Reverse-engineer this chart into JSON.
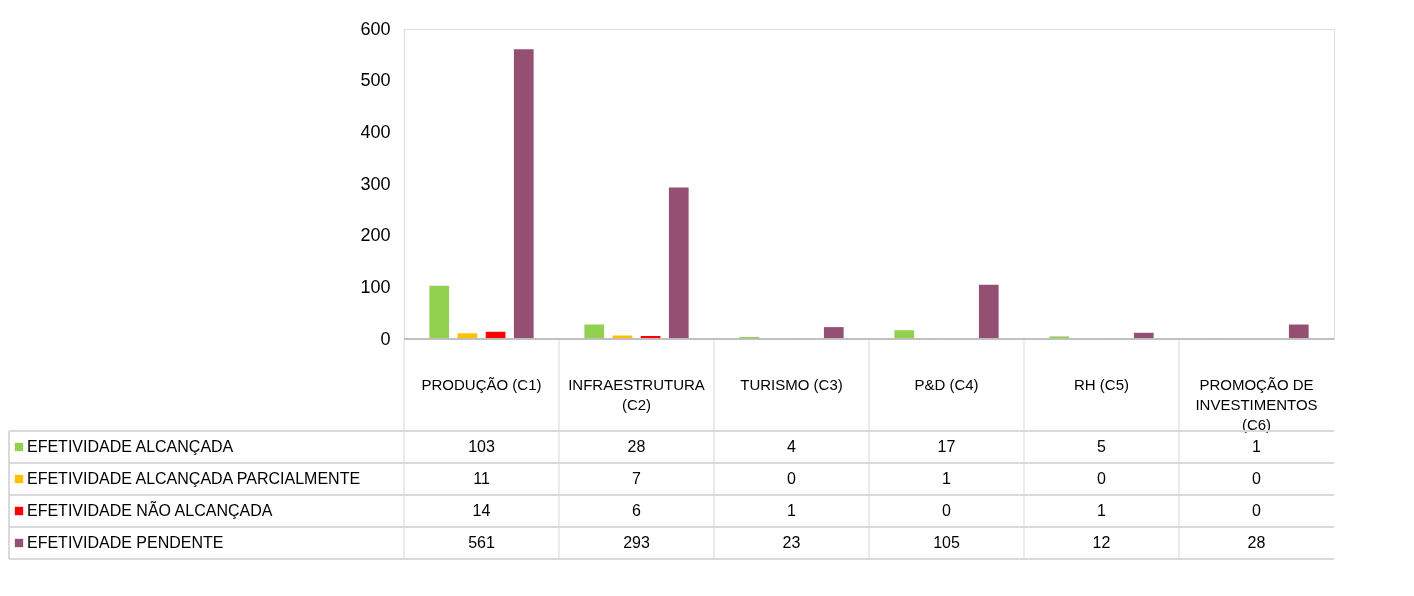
{
  "chart_data": {
    "type": "bar",
    "categories": [
      "PRODUÇÃO (C1)",
      "INFRAESTRUTURA (C2)",
      "TURISMO (C3)",
      "P&D (C4)",
      "RH (C5)",
      "PROMOÇÃO DE INVESTIMENTOS (C6)"
    ],
    "series": [
      {
        "name": "EFETIVIDADE ALCANÇADA",
        "color": "#92d050",
        "values": [
          103,
          28,
          4,
          17,
          5,
          1
        ]
      },
      {
        "name": "EFETIVIDADE ALCANÇADA PARCIALMENTE",
        "color": "#ffc000",
        "values": [
          11,
          7,
          0,
          1,
          0,
          0
        ]
      },
      {
        "name": "EFETIVIDADE NÃO ALCANÇADA",
        "color": "#ff0000",
        "values": [
          14,
          6,
          1,
          0,
          1,
          0
        ]
      },
      {
        "name": "EFETIVIDADE PENDENTE",
        "color": "#954f72",
        "values": [
          561,
          293,
          23,
          105,
          12,
          28
        ]
      }
    ],
    "ylim": [
      0,
      600
    ],
    "yticks": [
      0,
      100,
      200,
      300,
      400,
      500,
      600
    ],
    "grid": false,
    "legend": "bottom",
    "data_labels": true
  }
}
